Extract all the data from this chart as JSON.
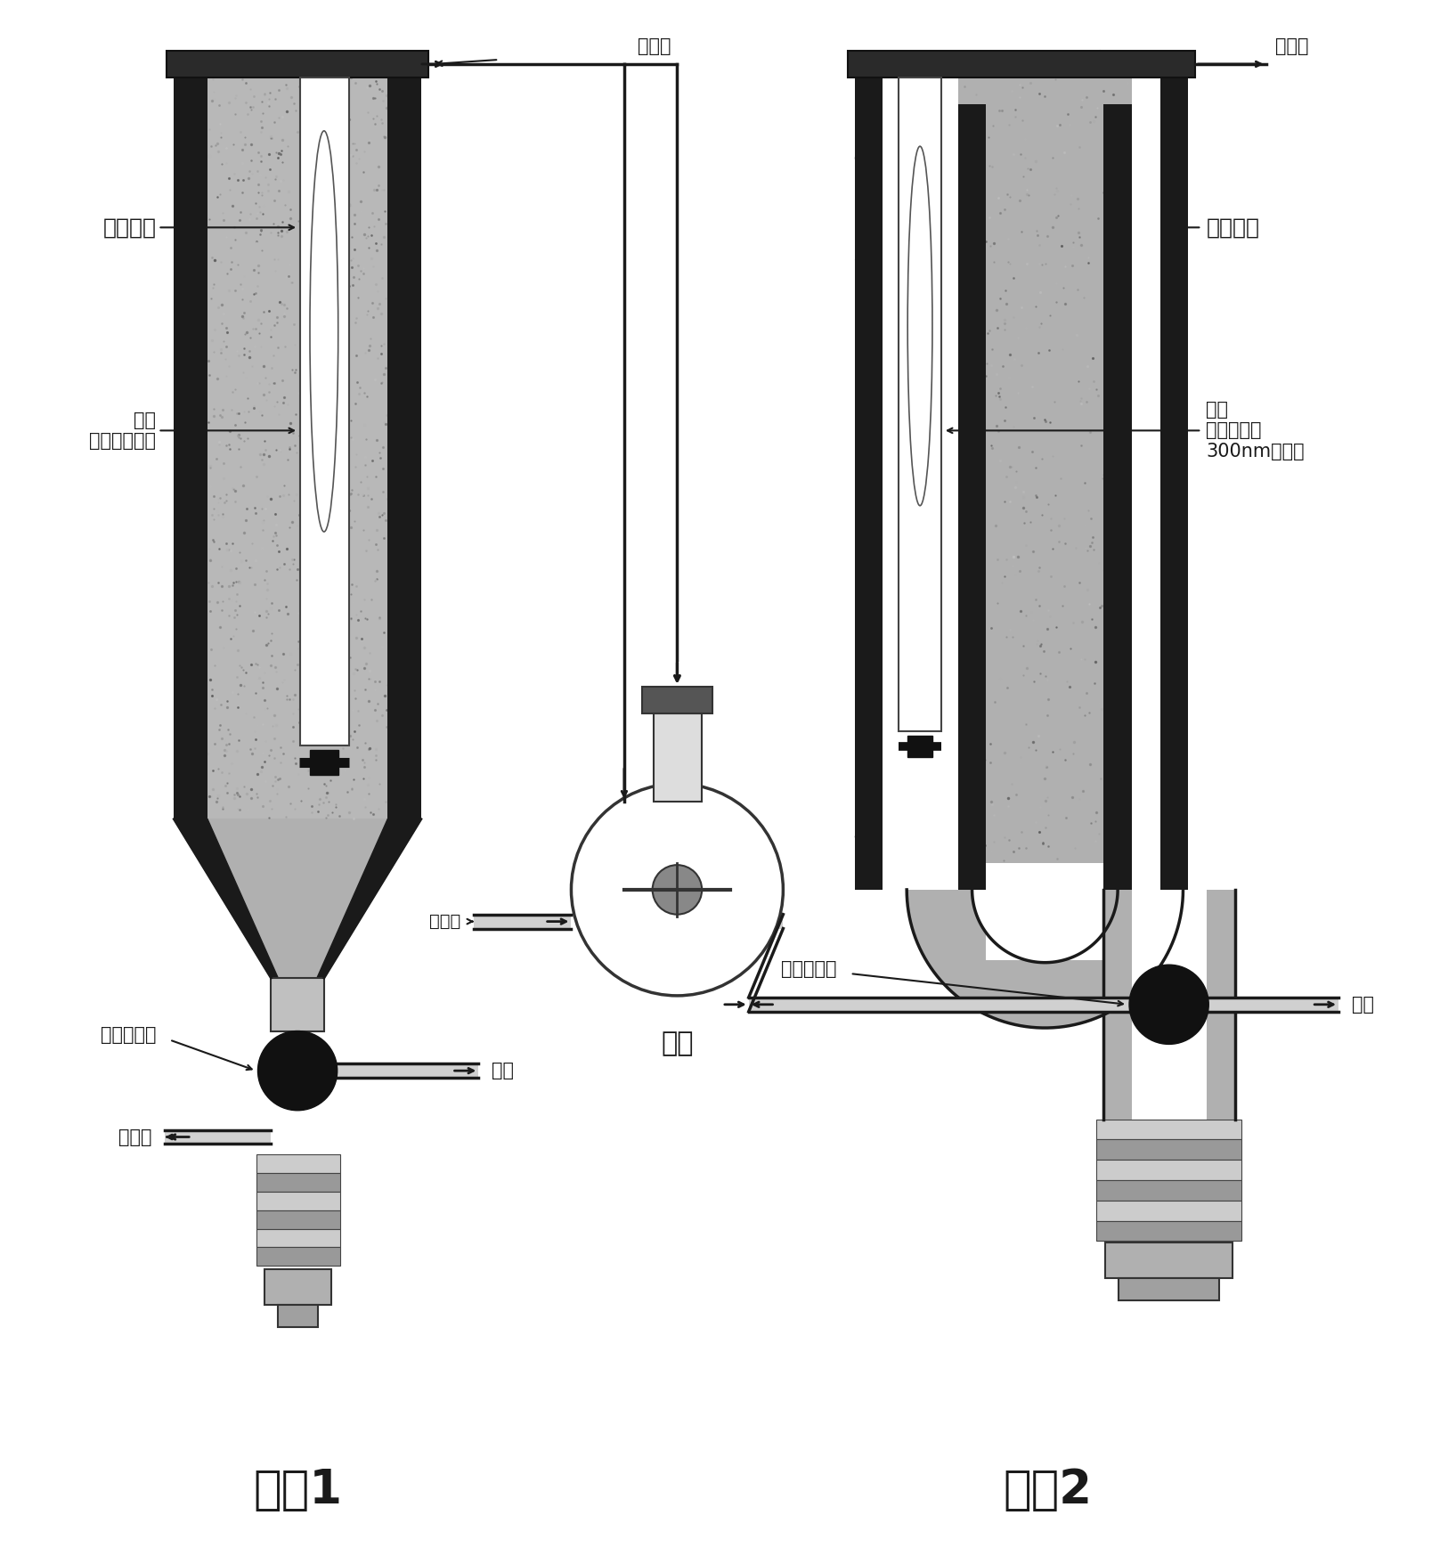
{
  "bg_color": "#ffffff",
  "system1_label": "系统1",
  "system2_label": "系统2",
  "label_gaoya_hg1": "高压汞灯",
  "label_gaoya_hg2": "高压汞灯",
  "label_lvceng1": "滤层\n（石英玻璃）",
  "label_lvceng2": "滤层\n（滤除短于\n300nm的光）",
  "label_qiye_hun1": "气液混合阀",
  "label_qiye_hun2": "气液混合阀",
  "label_fanying_ye_bottom": "反应液",
  "label_dan_qi1": "氮气",
  "label_dan_qi2": "氮气",
  "label_chuguo": "储罐",
  "label_fanyingye_top1": "反应液",
  "label_fanyingye_top2": "反应液",
  "label_fanyingye_outlet1": "反应液",
  "label_fanyingye_outlet2": "反应液"
}
